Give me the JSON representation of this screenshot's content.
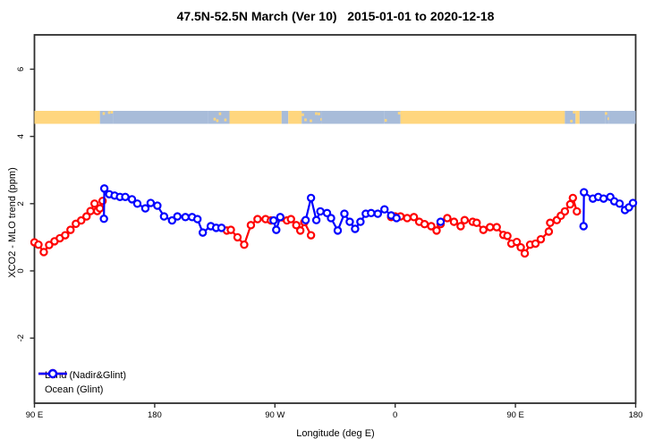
{
  "title": "47.5N-52.5N March (Ver 10)   2015-01-01 to 2020-12-18",
  "axes": {
    "x_label": "Longitude (deg E)",
    "y_label": "XCO2 - MLO trend (ppm)",
    "x_ticks": [
      {
        "lon": 90,
        "label": "90 E"
      },
      {
        "lon": 180,
        "label": "180"
      },
      {
        "lon": 270,
        "label": "90 W"
      },
      {
        "lon": 360,
        "label": "0"
      },
      {
        "lon": 450,
        "label": "90 E"
      },
      {
        "lon": 540,
        "label": "180"
      }
    ],
    "y_ticks": [
      {
        "v": -2,
        "label": "-2"
      },
      {
        "v": 0,
        "label": "0"
      },
      {
        "v": 2,
        "label": "2"
      },
      {
        "v": 4,
        "label": "4"
      },
      {
        "v": 6,
        "label": "6"
      }
    ]
  },
  "legend": [
    {
      "label": "Land (Nadir&Glint)",
      "color": "#ff0000"
    },
    {
      "label": "Ocean (Glint)",
      "color": "#0000ff"
    }
  ],
  "colors": {
    "land_series": "#ff0000",
    "ocean_series": "#0000ff",
    "band_land": "#ffd67e",
    "band_ocean": "#a8bcd9",
    "frame": "#2e2e2e"
  },
  "chart_data": {
    "type": "line",
    "title": "47.5N-52.5N March (Ver 10)   2015-01-01 to 2020-12-18",
    "xlabel": "Longitude (deg E)",
    "ylabel": "XCO2 - MLO trend (ppm)",
    "x_axis_note": "longitude axis starts at 90E and wraps eastward: 90E,180,90W,0,90E,180 (axis coords 90..540)",
    "xlim": [
      90,
      540
    ],
    "ylim": [
      -3.9,
      6.9
    ],
    "grid": false,
    "legend_position": "bottom-left",
    "land_ocean_band": {
      "y_value": 4.5,
      "comment": "horizontal strip showing surface type along longitude",
      "segments": [
        {
          "from": 90,
          "to": 139,
          "type": "land"
        },
        {
          "from": 139,
          "to": 149,
          "type": "mixed"
        },
        {
          "from": 149,
          "to": 220,
          "type": "ocean"
        },
        {
          "from": 220,
          "to": 236,
          "type": "mixed"
        },
        {
          "from": 236,
          "to": 275,
          "type": "land"
        },
        {
          "from": 275,
          "to": 280,
          "type": "mixed"
        },
        {
          "from": 280,
          "to": 290,
          "type": "land"
        },
        {
          "from": 290,
          "to": 305,
          "type": "mixed"
        },
        {
          "from": 305,
          "to": 352,
          "type": "ocean"
        },
        {
          "from": 352,
          "to": 364,
          "type": "mixed"
        },
        {
          "from": 364,
          "to": 487,
          "type": "land"
        },
        {
          "from": 487,
          "to": 495,
          "type": "mixed"
        },
        {
          "from": 495,
          "to": 498,
          "type": "land"
        },
        {
          "from": 498,
          "to": 517,
          "type": "ocean"
        },
        {
          "from": 517,
          "to": 520,
          "type": "mixed"
        },
        {
          "from": 520,
          "to": 540,
          "type": "ocean"
        }
      ]
    },
    "series": [
      {
        "name": "Land (Nadir&Glint)",
        "color": "#ff0000",
        "segments": [
          [
            [
              90,
              0.85
            ],
            [
              93,
              0.78
            ],
            [
              97,
              0.56
            ],
            [
              101,
              0.77
            ],
            [
              105,
              0.88
            ],
            [
              109,
              0.97
            ],
            [
              113,
              1.06
            ],
            [
              117,
              1.22
            ],
            [
              121,
              1.4
            ],
            [
              125,
              1.5
            ],
            [
              129,
              1.62
            ],
            [
              132,
              1.78
            ],
            [
              135,
              2.0
            ],
            [
              137,
              1.78
            ],
            [
              139,
              1.86
            ],
            [
              141,
              2.08
            ]
          ],
          [
            [
              234,
              1.2
            ],
            [
              237,
              1.22
            ],
            [
              242,
              1.0
            ],
            [
              247,
              0.78
            ],
            [
              252,
              1.36
            ],
            [
              257,
              1.54
            ],
            [
              263,
              1.54
            ],
            [
              267,
              1.5
            ],
            [
              279,
              1.5
            ],
            [
              282,
              1.54
            ],
            [
              286,
              1.36
            ],
            [
              289,
              1.2
            ],
            [
              292,
              1.45
            ],
            [
              297,
              1.06
            ]
          ],
          [
            [
              357,
              1.6
            ],
            [
              360,
              1.62
            ],
            [
              364,
              1.62
            ],
            [
              369,
              1.57
            ],
            [
              374,
              1.6
            ],
            [
              378,
              1.46
            ],
            [
              382,
              1.39
            ],
            [
              387,
              1.33
            ],
            [
              391,
              1.2
            ],
            [
              394,
              1.39
            ],
            [
              399,
              1.57
            ],
            [
              404,
              1.46
            ],
            [
              409,
              1.33
            ],
            [
              412,
              1.51
            ],
            [
              418,
              1.46
            ],
            [
              421,
              1.43
            ],
            [
              426,
              1.22
            ],
            [
              431,
              1.3
            ],
            [
              436,
              1.3
            ],
            [
              441,
              1.07
            ],
            [
              444,
              1.04
            ],
            [
              447,
              0.81
            ],
            [
              451,
              0.86
            ],
            [
              454,
              0.7
            ],
            [
              457,
              0.52
            ],
            [
              461,
              0.78
            ],
            [
              465,
              0.81
            ],
            [
              469,
              0.94
            ],
            [
              475,
              1.17
            ],
            [
              476,
              1.43
            ],
            [
              481,
              1.51
            ],
            [
              484,
              1.64
            ],
            [
              487,
              1.77
            ],
            [
              491,
              1.98
            ],
            [
              493,
              2.17
            ],
            [
              496,
              1.77
            ]
          ]
        ]
      },
      {
        "name": "Ocean (Glint)",
        "color": "#0000ff",
        "segments": [
          [
            [
              142,
              1.55
            ],
            [
              142.3,
              2.45
            ],
            [
              146,
              2.28
            ],
            [
              150,
              2.24
            ],
            [
              154,
              2.2
            ],
            [
              158,
              2.2
            ],
            [
              163,
              2.13
            ],
            [
              167,
              2.0
            ],
            [
              173,
              1.86
            ],
            [
              177,
              2.02
            ],
            [
              182,
              1.94
            ],
            [
              187,
              1.62
            ],
            [
              193,
              1.5
            ],
            [
              197,
              1.62
            ],
            [
              203,
              1.6
            ],
            [
              208,
              1.6
            ],
            [
              212,
              1.54
            ],
            [
              216,
              1.14
            ],
            [
              222,
              1.33
            ],
            [
              226,
              1.28
            ],
            [
              230,
              1.28
            ]
          ],
          [
            [
              269,
              1.5
            ],
            [
              271,
              1.22
            ],
            [
              274,
              1.6
            ]
          ],
          [
            [
              293,
              1.51
            ],
            [
              297,
              2.17
            ],
            [
              301,
              1.51
            ],
            [
              304,
              1.77
            ],
            [
              309,
              1.72
            ],
            [
              312,
              1.57
            ],
            [
              317,
              1.2
            ],
            [
              322,
              1.7
            ],
            [
              326,
              1.46
            ],
            [
              330,
              1.25
            ],
            [
              334,
              1.46
            ],
            [
              338,
              1.7
            ],
            [
              342,
              1.72
            ],
            [
              347,
              1.7
            ],
            [
              352,
              1.83
            ],
            [
              357,
              1.65
            ],
            [
              361,
              1.57
            ]
          ],
          [
            [
              394,
              1.46
            ]
          ],
          [
            [
              501,
              1.33
            ],
            [
              501.3,
              2.34
            ],
            [
              508,
              2.15
            ],
            [
              512,
              2.2
            ],
            [
              516,
              2.15
            ],
            [
              521,
              2.2
            ],
            [
              524,
              2.07
            ],
            [
              528,
              2.0
            ],
            [
              532,
              1.81
            ],
            [
              535,
              1.89
            ],
            [
              538,
              2.02
            ]
          ]
        ]
      }
    ]
  }
}
